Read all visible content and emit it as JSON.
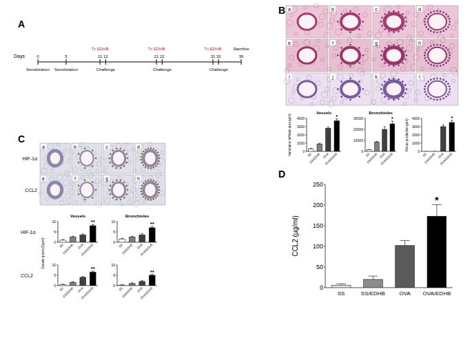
{
  "panel_labels": [
    "A",
    "B",
    "C",
    "D"
  ],
  "timeline": {
    "axis_label": "Days",
    "xlim": [
      0,
      36
    ],
    "ticks": [
      0,
      5,
      11,
      12,
      21,
      22,
      31,
      32,
      36
    ],
    "events": [
      {
        "day": 0,
        "text": "Sensitization"
      },
      {
        "day": 5,
        "text": "Sensitization"
      },
      {
        "day": 11,
        "text": "Tx EDHB",
        "color": "#d02020"
      },
      {
        "day": 12,
        "text": "Challenge"
      },
      {
        "day": 21,
        "text": "Tx EDHB",
        "color": "#d02020"
      },
      {
        "day": 22,
        "text": "Challenge"
      },
      {
        "day": 31,
        "text": "Tx EDHB",
        "color": "#d02020"
      },
      {
        "day": 32,
        "text": "Challenge"
      },
      {
        "day": 36,
        "text": "Sacrifice"
      }
    ]
  },
  "micrographs_b": {
    "letters": [
      "a",
      "b",
      "c",
      "d",
      "e",
      "f",
      "g",
      "h",
      "i",
      "j",
      "k",
      "l"
    ]
  },
  "micrographs_c": {
    "row_labels": [
      "HIF-1α",
      "CCL2"
    ],
    "letters": [
      "a",
      "b",
      "c",
      "d",
      "e",
      "f",
      "g",
      "h"
    ]
  },
  "chart_rows_c": [
    "HIF-1α",
    "CCL2"
  ],
  "chart_data": [
    {
      "type": "bar",
      "title": "Vessels",
      "y_label": "flammatory infiltrate area (µm²)",
      "categories": [
        "SS",
        "SS/EDHB",
        "OVA",
        "OVA/EDHB"
      ],
      "values": [
        300,
        900,
        2800,
        3700
      ],
      "errors": [
        80,
        100,
        150,
        250
      ],
      "colors": [
        "#ffffff",
        "#808080",
        "#404040",
        "#000000"
      ],
      "ylim": [
        0,
        4000
      ],
      "yticks": [
        0,
        1000,
        2000,
        3000,
        4000
      ],
      "annotations": [
        {
          "category": "OVA/EDHB",
          "text": "*"
        }
      ]
    },
    {
      "type": "bar",
      "title": "Bronchioles",
      "categories": [
        "SS",
        "SS/EDHB",
        "OVA",
        "OVA/EDHB"
      ],
      "values": [
        1500,
        8500,
        20000,
        25000
      ],
      "errors": [
        300,
        600,
        2500,
        2500
      ],
      "colors": [
        "#ffffff",
        "#808080",
        "#404040",
        "#000000"
      ],
      "ylim": [
        0,
        30000
      ],
      "yticks": [
        0,
        10000,
        20000,
        30000
      ],
      "annotations": [
        {
          "category": "OVA/EDHB",
          "text": "*"
        }
      ]
    },
    {
      "type": "bar",
      "y_label": "Mucus production (µm²)",
      "categories": [
        "SS",
        "SS/EDHB",
        "OVA",
        "OVA/EDHB"
      ],
      "values": [
        0,
        0,
        3000,
        3500
      ],
      "errors": [
        0,
        0,
        200,
        250
      ],
      "colors": [
        "#ffffff",
        "#808080",
        "#404040",
        "#000000"
      ],
      "ylim": [
        0,
        4000
      ],
      "yticks": [
        0,
        1000,
        2000,
        3000,
        4000
      ],
      "annotations": [
        {
          "category": "OVA/EDHB",
          "text": "*"
        }
      ]
    },
    {
      "type": "bar",
      "title": "Vessels",
      "y_label": "Density (pixels/20µm²)",
      "categories": [
        "SS",
        "SS/EDHB",
        "OVA",
        "OVA/EDHB"
      ],
      "values": [
        1,
        2.5,
        3.5,
        8
      ],
      "errors": [
        0.3,
        0.4,
        0.5,
        0.6
      ],
      "colors": [
        "#ffffff",
        "#808080",
        "#404040",
        "#000000"
      ],
      "ylim": [
        0,
        10
      ],
      "yticks": [
        0,
        5,
        10
      ],
      "annotations": [
        {
          "category": "OVA/EDHB",
          "text": "**"
        }
      ]
    },
    {
      "type": "bar",
      "title": "Bronchioles",
      "categories": [
        "SS",
        "SS/EDHB",
        "OVA",
        "OVA/EDHB"
      ],
      "values": [
        1.5,
        2.5,
        3.5,
        7
      ],
      "errors": [
        0.4,
        0.4,
        0.6,
        0.6
      ],
      "colors": [
        "#ffffff",
        "#808080",
        "#404040",
        "#000000"
      ],
      "ylim": [
        0,
        10
      ],
      "yticks": [
        0,
        5,
        10
      ],
      "annotations": [
        {
          "category": "OVA/EDHB",
          "text": "**"
        }
      ]
    },
    {
      "type": "bar",
      "categories": [
        "SS",
        "SS/EDHB",
        "OVA",
        "OVA/EDHB"
      ],
      "values": [
        0.5,
        1.5,
        4,
        6.5
      ],
      "errors": [
        0.2,
        0.3,
        0.4,
        0.5
      ],
      "colors": [
        "#ffffff",
        "#808080",
        "#404040",
        "#000000"
      ],
      "ylim": [
        0,
        10
      ],
      "yticks": [
        0,
        5,
        10
      ],
      "annotations": [
        {
          "category": "OVA/EDHB",
          "text": "**"
        }
      ]
    },
    {
      "type": "bar",
      "categories": [
        "SS",
        "SS/EDHB",
        "OVA",
        "OVA/EDHB"
      ],
      "values": [
        0.3,
        1,
        2,
        5
      ],
      "errors": [
        0.1,
        0.3,
        0.4,
        0.5
      ],
      "colors": [
        "#ffffff",
        "#808080",
        "#404040",
        "#000000"
      ],
      "ylim": [
        0,
        10
      ],
      "yticks": [
        0,
        5,
        10
      ],
      "annotations": [
        {
          "category": "OVA/EDHB",
          "text": "**"
        }
      ]
    },
    {
      "type": "bar",
      "y_label": "CCL2 (µg/ml)",
      "categories": [
        "SS",
        "SS/EDHB",
        "OVA",
        "OVA/EDHB"
      ],
      "values": [
        6,
        20,
        102,
        173
      ],
      "errors": [
        3,
        8,
        12,
        28
      ],
      "colors": [
        "#e0e0e0",
        "#8c8c8c",
        "#5a5a5a",
        "#000000"
      ],
      "ylim": [
        0,
        250
      ],
      "yticks": [
        0,
        50,
        100,
        150,
        200,
        250
      ],
      "annotations": [
        {
          "category": "OVA/EDHB",
          "text": "*"
        }
      ]
    }
  ]
}
